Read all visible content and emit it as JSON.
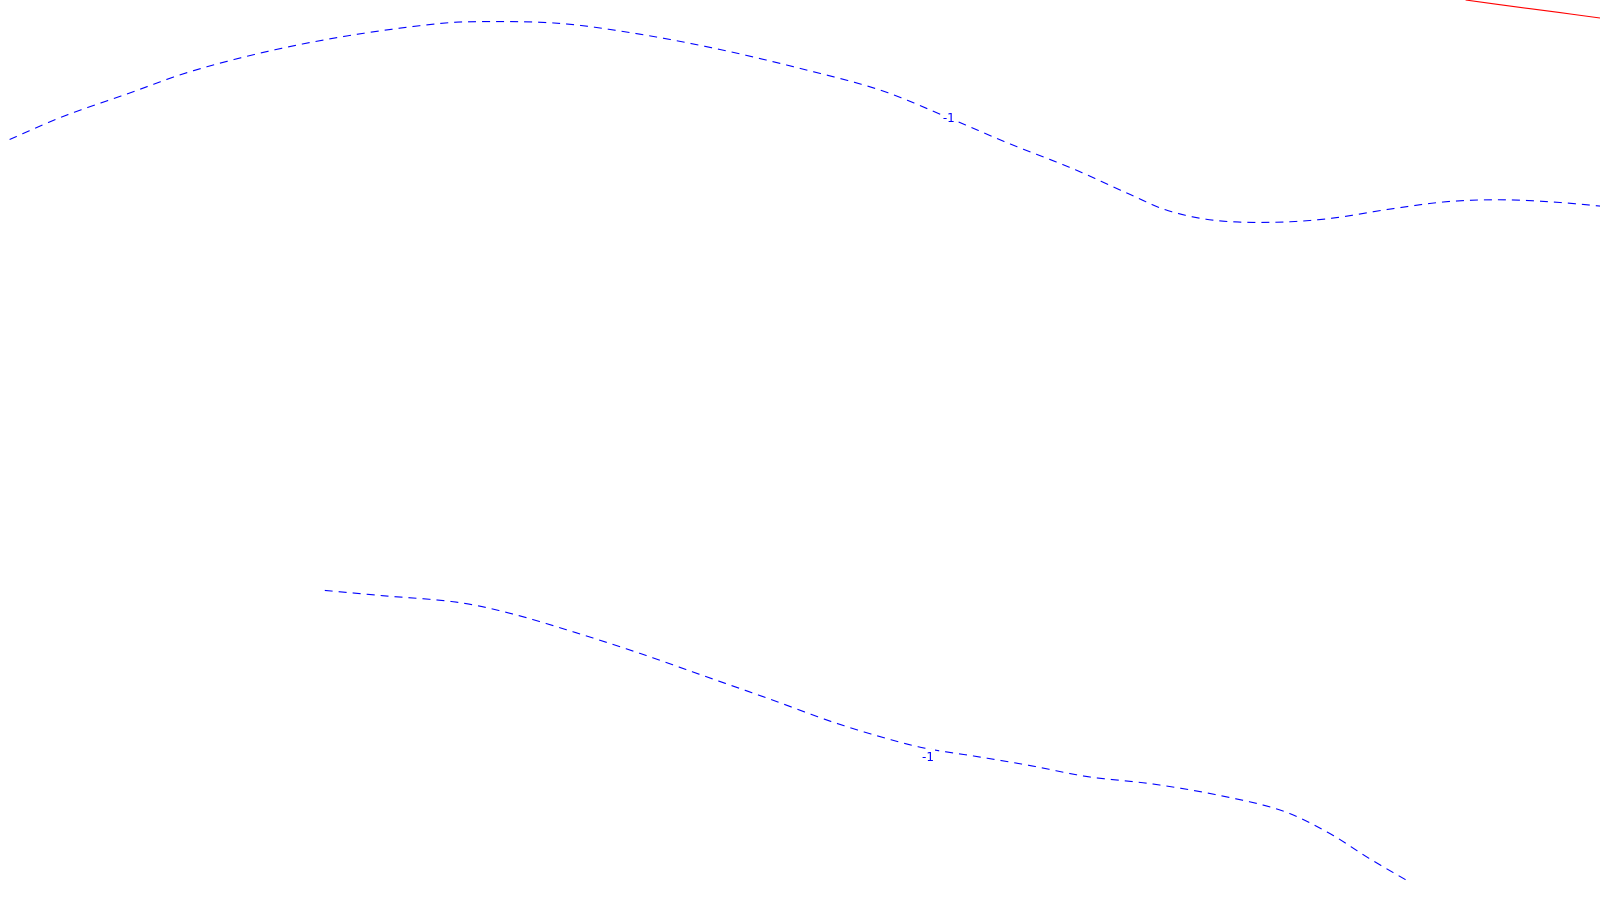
{
  "chart_data": {
    "type": "line",
    "title": "",
    "xlabel": "",
    "ylabel": "",
    "grid": false,
    "legend": "none",
    "series": [
      {
        "label": "-1",
        "color": "#0000ff",
        "style": "dashed",
        "points": [
          [
            0.006,
            0.845
          ],
          [
            0.04,
            0.871
          ],
          [
            0.08,
            0.896
          ],
          [
            0.12,
            0.921
          ],
          [
            0.17,
            0.944
          ],
          [
            0.22,
            0.961
          ],
          [
            0.27,
            0.973
          ],
          [
            0.3,
            0.976
          ],
          [
            0.35,
            0.974
          ],
          [
            0.4,
            0.962
          ],
          [
            0.45,
            0.945
          ],
          [
            0.5,
            0.924
          ],
          [
            0.55,
            0.9
          ],
          [
            0.593,
            0.869
          ],
          [
            0.63,
            0.841
          ],
          [
            0.67,
            0.813
          ],
          [
            0.705,
            0.785
          ],
          [
            0.73,
            0.766
          ],
          [
            0.76,
            0.755
          ],
          [
            0.795,
            0.753
          ],
          [
            0.83,
            0.757
          ],
          [
            0.87,
            0.768
          ],
          [
            0.905,
            0.776
          ],
          [
            0.94,
            0.778
          ],
          [
            0.975,
            0.775
          ],
          [
            1.0,
            0.771
          ]
        ]
      },
      {
        "label": "-1",
        "color": "#0000ff",
        "style": "dashed",
        "points": [
          [
            0.203,
            0.344
          ],
          [
            0.24,
            0.338
          ],
          [
            0.285,
            0.331
          ],
          [
            0.32,
            0.318
          ],
          [
            0.36,
            0.297
          ],
          [
            0.4,
            0.274
          ],
          [
            0.44,
            0.249
          ],
          [
            0.48,
            0.224
          ],
          [
            0.52,
            0.198
          ],
          [
            0.555,
            0.179
          ],
          [
            0.58,
            0.168
          ],
          [
            0.612,
            0.159
          ],
          [
            0.645,
            0.149
          ],
          [
            0.68,
            0.137
          ],
          [
            0.72,
            0.129
          ],
          [
            0.76,
            0.117
          ],
          [
            0.8,
            0.1
          ],
          [
            0.83,
            0.075
          ],
          [
            0.855,
            0.047
          ],
          [
            0.88,
            0.021
          ]
        ]
      },
      {
        "label": "",
        "color": "#ff0000",
        "style": "solid",
        "points": [
          [
            0.916,
            1.0
          ],
          [
            0.945,
            0.993
          ],
          [
            0.975,
            0.986
          ],
          [
            1.0,
            0.98
          ]
        ]
      }
    ],
    "annotations": [
      {
        "text": "-1",
        "x": 0.593,
        "y": 0.869,
        "color": "#0000ff"
      },
      {
        "text": "-1",
        "x": 0.58,
        "y": 0.159,
        "color": "#0000ff"
      }
    ],
    "xlim": [
      0,
      1
    ],
    "ylim": [
      0,
      1
    ]
  }
}
